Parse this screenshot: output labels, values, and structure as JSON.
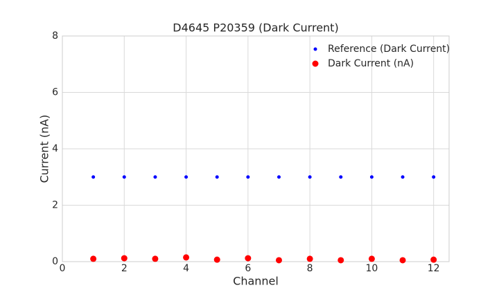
{
  "chart_data": {
    "type": "scatter",
    "title": "D4645 P20359 (Dark Current)",
    "x_label": "Channel",
    "y_label": "Current (nA)",
    "x": [
      1,
      2,
      3,
      4,
      5,
      6,
      7,
      8,
      9,
      10,
      11,
      12
    ],
    "series": [
      {
        "name": "Reference (Dark Current)",
        "color": "#0000ff",
        "values": [
          3,
          3,
          3,
          3,
          3,
          3,
          3,
          3,
          3,
          3,
          3,
          3
        ]
      },
      {
        "name": "Dark Current (nA)",
        "color": "#ff0000",
        "values": [
          0.1,
          0.12,
          0.1,
          0.15,
          0.07,
          0.12,
          0.05,
          0.1,
          0.05,
          0.1,
          0.05,
          0.07
        ]
      }
    ],
    "xlim": [
      0,
      12.5
    ],
    "xticks": [
      0,
      2,
      4,
      6,
      8,
      10,
      12
    ],
    "ylim": [
      0,
      8
    ],
    "yticks": [
      0,
      2,
      4,
      6,
      8
    ],
    "grid": true,
    "legend": "upper right"
  }
}
